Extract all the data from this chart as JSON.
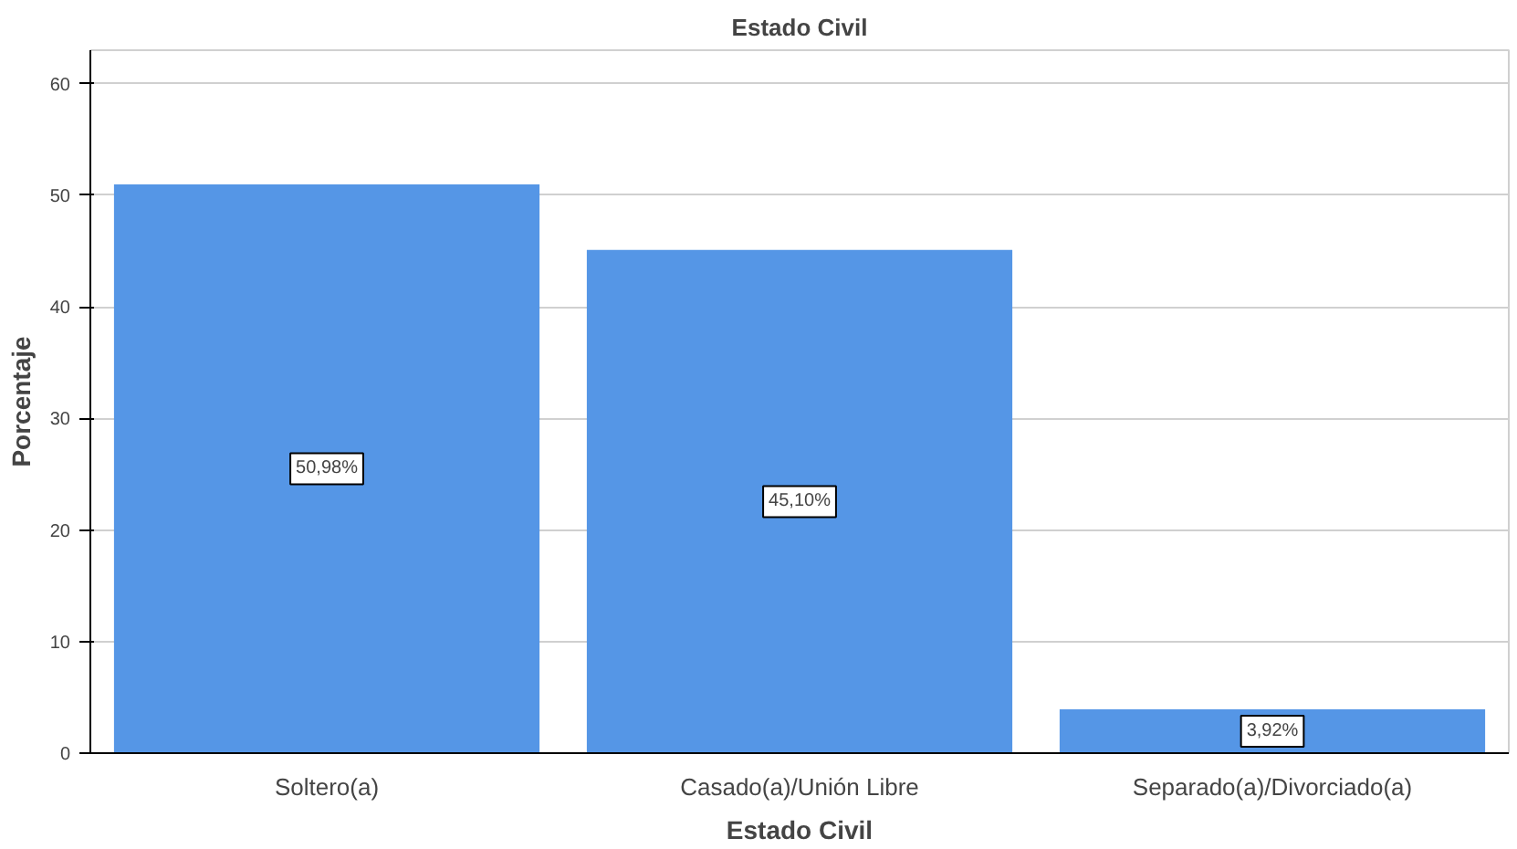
{
  "chart_data": {
    "type": "bar",
    "title": "Estado Civil",
    "xlabel": "Estado Civil",
    "ylabel": "Porcentaje",
    "categories": [
      "Soltero(a)",
      "Casado(a)/Unión Libre",
      "Separado(a)/Divorciado(a)"
    ],
    "values": [
      50.98,
      45.1,
      3.92
    ],
    "value_labels": [
      "50,98%",
      "45,10%",
      "3,92%"
    ],
    "color": "#5596e6",
    "ylim": [
      0,
      63
    ],
    "yticks": [
      0,
      10,
      20,
      30,
      40,
      50,
      60
    ],
    "grid": "y"
  }
}
